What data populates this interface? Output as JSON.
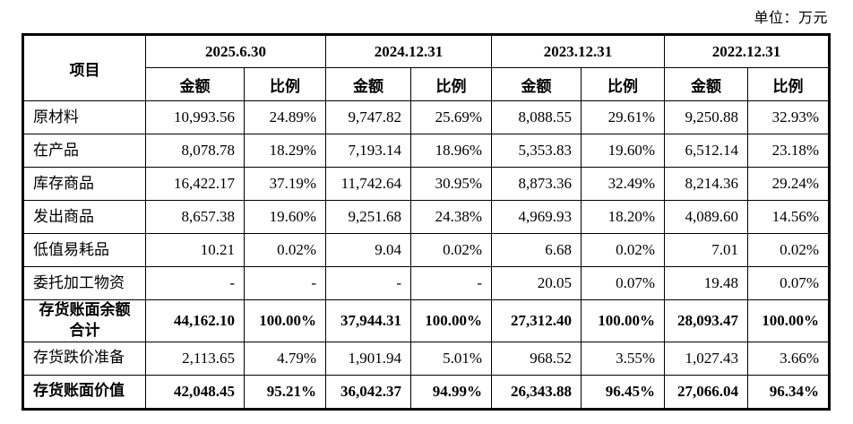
{
  "unit_label": "单位：万元",
  "table": {
    "item_header": "项目",
    "col_groups": [
      {
        "date": "2025.6.30"
      },
      {
        "date": "2024.12.31"
      },
      {
        "date": "2023.12.31"
      },
      {
        "date": "2022.12.31"
      }
    ],
    "sub_headers": {
      "amount": "金额",
      "ratio": "比例"
    },
    "rows": [
      {
        "label": "原材料",
        "bold": false,
        "center": false,
        "cells": [
          "10,993.56",
          "24.89%",
          "9,747.82",
          "25.69%",
          "8,088.55",
          "29.61%",
          "9,250.88",
          "32.93%"
        ]
      },
      {
        "label": "在产品",
        "bold": false,
        "center": false,
        "cells": [
          "8,078.78",
          "18.29%",
          "7,193.14",
          "18.96%",
          "5,353.83",
          "19.60%",
          "6,512.14",
          "23.18%"
        ]
      },
      {
        "label": "库存商品",
        "bold": false,
        "center": false,
        "cells": [
          "16,422.17",
          "37.19%",
          "11,742.64",
          "30.95%",
          "8,873.36",
          "32.49%",
          "8,214.36",
          "29.24%"
        ]
      },
      {
        "label": "发出商品",
        "bold": false,
        "center": false,
        "cells": [
          "8,657.38",
          "19.60%",
          "9,251.68",
          "24.38%",
          "4,969.93",
          "18.20%",
          "4,089.60",
          "14.56%"
        ]
      },
      {
        "label": "低值易耗品",
        "bold": false,
        "center": false,
        "cells": [
          "10.21",
          "0.02%",
          "9.04",
          "0.02%",
          "6.68",
          "0.02%",
          "7.01",
          "0.02%"
        ]
      },
      {
        "label": "委托加工物资",
        "bold": false,
        "center": false,
        "cells": [
          "-",
          "-",
          "-",
          "-",
          "20.05",
          "0.07%",
          "19.48",
          "0.07%"
        ]
      },
      {
        "label": "存货账面余额\n合计",
        "bold": true,
        "center": true,
        "cells": [
          "44,162.10",
          "100.00%",
          "37,944.31",
          "100.00%",
          "27,312.40",
          "100.00%",
          "28,093.47",
          "100.00%"
        ]
      },
      {
        "label": "存货跌价准备",
        "bold": false,
        "center": false,
        "cells": [
          "2,113.65",
          "4.79%",
          "1,901.94",
          "5.01%",
          "968.52",
          "3.55%",
          "1,027.43",
          "3.66%"
        ]
      },
      {
        "label": "存货账面价值",
        "bold": true,
        "center": false,
        "cells": [
          "42,048.45",
          "95.21%",
          "36,042.37",
          "94.99%",
          "26,343.88",
          "96.45%",
          "27,066.04",
          "96.34%"
        ]
      }
    ]
  }
}
